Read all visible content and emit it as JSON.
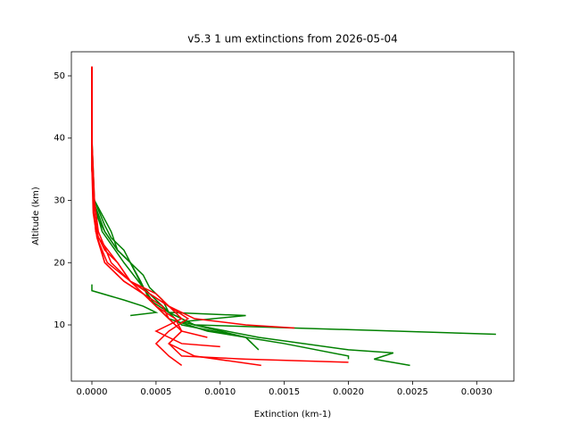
{
  "chart_data": {
    "type": "line",
    "title": "v5.3 1 um extinctions from 2026-05-04",
    "x_label": "Extinction (km-1)",
    "y_label": "Altitude (km)",
    "xlim": [
      -0.00016,
      0.00329
    ],
    "ylim": [
      0.97,
      53.87
    ],
    "xticks": [
      {
        "value": 0,
        "label": "0.0000"
      },
      {
        "value": 0.0005,
        "label": "0.0005"
      },
      {
        "value": 0.001,
        "label": "0.0010"
      },
      {
        "value": 0.0015,
        "label": "0.0015"
      },
      {
        "value": 0.002,
        "label": "0.0020"
      },
      {
        "value": 0.0025,
        "label": "0.0025"
      },
      {
        "value": 0.003,
        "label": "0.0030"
      }
    ],
    "yticks": [
      10,
      20,
      30,
      40,
      50
    ],
    "series": [
      {
        "color": "#008000",
        "x": [
          0,
          0,
          1e-05,
          5e-05,
          0.0001,
          0.0002,
          0.0003,
          0.00035,
          0.0004,
          0.0005,
          0.0006,
          0.0008,
          0.00315
        ],
        "y": [
          51.5,
          40,
          30,
          27,
          25,
          22,
          20,
          18,
          16,
          14,
          12,
          10,
          8.5
        ]
      },
      {
        "color": "#008000",
        "x": [
          0,
          0,
          2e-05,
          0.0001,
          0.00015,
          0.00025,
          0.0003,
          0.0004,
          0.00045,
          0.00055,
          0.0006,
          0.0012,
          0.0007,
          0.0009,
          0.0012,
          0.00125
        ],
        "y": [
          51.5,
          40,
          30,
          26,
          24,
          22,
          20,
          18,
          16,
          14,
          12,
          11.5,
          10.5,
          9.5,
          8,
          7
        ]
      },
      {
        "color": "#008000",
        "x": [
          0,
          0,
          1e-05,
          0.0001,
          0.0002,
          0.0003,
          0.00035,
          0.0004,
          0.0005,
          0.0006,
          0.0008,
          0.0013,
          0.002,
          0.00235,
          0.0022,
          0.00248
        ],
        "y": [
          51.5,
          40,
          30,
          25,
          22,
          20,
          18,
          16,
          14,
          12,
          10,
          8,
          6,
          5.5,
          4.5,
          3.5
        ]
      },
      {
        "color": "#008000",
        "x": [
          0,
          0,
          0.00025,
          0.0004,
          0.0005,
          0.0003
        ],
        "y": [
          16.5,
          15.5,
          14,
          13,
          12,
          11.5
        ]
      },
      {
        "color": "#008000",
        "x": [
          0,
          0,
          1e-05,
          8e-05,
          0.00025,
          0.0004,
          0.0005,
          0.0006,
          0.0009,
          0.0015,
          0.002,
          0.002
        ],
        "y": [
          51.5,
          40,
          30,
          25,
          20,
          16,
          13,
          11,
          9,
          7,
          5,
          4.5
        ]
      },
      {
        "color": "#008000",
        "x": [
          0,
          0,
          2e-05,
          0.00015,
          0.0002,
          0.0003,
          0.00038,
          0.00045,
          0.0006,
          0.0007,
          0.0012,
          0.00125,
          0.0013
        ],
        "y": [
          51.5,
          35,
          30,
          25,
          22,
          20,
          17,
          14,
          12,
          10,
          8,
          7,
          6
        ]
      },
      {
        "color": "#ff0000",
        "x": [
          0,
          0,
          1e-05,
          3e-05,
          0.0001,
          0.0002,
          0.0003,
          0.0005,
          0.0006,
          0.0008,
          0.0012,
          0.00158
        ],
        "y": [
          51.5,
          40,
          30,
          25,
          22,
          20,
          17,
          15,
          13,
          11,
          10,
          9.5
        ]
      },
      {
        "color": "#ff0000",
        "x": [
          0,
          0,
          1e-05,
          3e-05,
          0.0001,
          0.00025,
          0.0004,
          0.0005,
          0.0006,
          0.0007,
          0.0006,
          0.0007,
          0.0012,
          0.002
        ],
        "y": [
          51.5,
          40,
          30,
          25,
          20,
          17,
          15,
          13,
          11,
          9,
          7,
          5,
          4.5,
          4
        ]
      },
      {
        "color": "#ff0000",
        "x": [
          0,
          0,
          2e-05,
          5e-05,
          0.00015,
          0.0003,
          0.0004,
          0.00055,
          0.0006,
          0.0007,
          0.0006,
          0.0008,
          0.00132
        ],
        "y": [
          51.5,
          40,
          30,
          25,
          20,
          17,
          15,
          13,
          11,
          9,
          7,
          5,
          3.5
        ]
      },
      {
        "color": "#ff0000",
        "x": [
          0,
          0,
          2e-05,
          5e-05,
          0.0002,
          0.0003,
          0.00045,
          0.0006,
          0.0007,
          0.0005,
          0.0007,
          0.001
        ],
        "y": [
          51.5,
          35,
          28,
          24,
          20,
          17,
          15,
          13,
          11,
          9,
          7,
          6.5
        ]
      },
      {
        "color": "#ff0000",
        "x": [
          0,
          0,
          2e-05,
          4e-05,
          0.00012,
          0.0003,
          0.00045,
          0.0006,
          0.00075,
          0.0006,
          0.0005,
          0.0006,
          0.0007
        ],
        "y": [
          51.5,
          35,
          28,
          24,
          20,
          17,
          15,
          13,
          11,
          9,
          7,
          5,
          3.5
        ]
      },
      {
        "color": "#ff0000",
        "x": [
          0,
          0,
          1e-05,
          4e-05,
          0.0001,
          0.00025,
          0.0004,
          0.0005,
          0.00065,
          0.0007,
          0.0009
        ],
        "y": [
          51.5,
          35,
          28,
          24,
          20,
          17,
          15,
          13,
          11,
          9,
          8
        ]
      }
    ]
  }
}
